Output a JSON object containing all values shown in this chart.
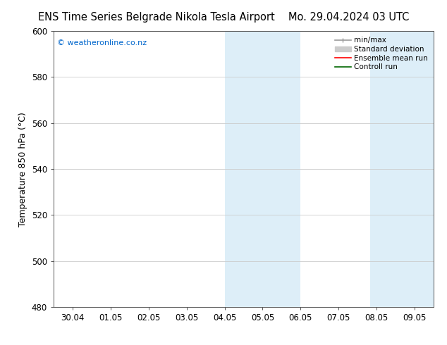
{
  "title_left": "ENS Time Series Belgrade Nikola Tesla Airport",
  "title_right": "Mo. 29.04.2024 03 UTC",
  "ylabel": "Temperature 850 hPa (°C)",
  "xlabel_ticks": [
    "30.04",
    "01.05",
    "02.05",
    "03.05",
    "04.05",
    "05.05",
    "06.05",
    "07.05",
    "08.05",
    "09.05"
  ],
  "ylim": [
    480,
    600
  ],
  "yticks": [
    480,
    500,
    520,
    540,
    560,
    580,
    600
  ],
  "background_color": "#ffffff",
  "plot_bg_color": "#ffffff",
  "watermark_text": "© weatheronline.co.nz",
  "watermark_color": "#0066cc",
  "legend_entries": [
    {
      "label": "min/max",
      "color": "#999999",
      "lw": 1.2
    },
    {
      "label": "Standard deviation",
      "color": "#cccccc",
      "lw": 5
    },
    {
      "label": "Ensemble mean run",
      "color": "#ff0000",
      "lw": 1.2
    },
    {
      "label": "Controll run",
      "color": "#006600",
      "lw": 1.2
    }
  ],
  "title_fontsize": 10.5,
  "tick_fontsize": 8.5,
  "label_fontsize": 9,
  "watermark_fontsize": 8,
  "legend_fontsize": 7.5,
  "shaded_color": "#ddeef8",
  "band1_x0": 4.0,
  "band1_x1": 5.0,
  "band2_x0": 5.0,
  "band2_x1": 6.0,
  "band3_x0": 7.83,
  "band3_x1": 8.5,
  "band4_x0": 8.5,
  "band4_x1": 9.5,
  "xlim_left": -0.5,
  "xlim_right": 9.5
}
